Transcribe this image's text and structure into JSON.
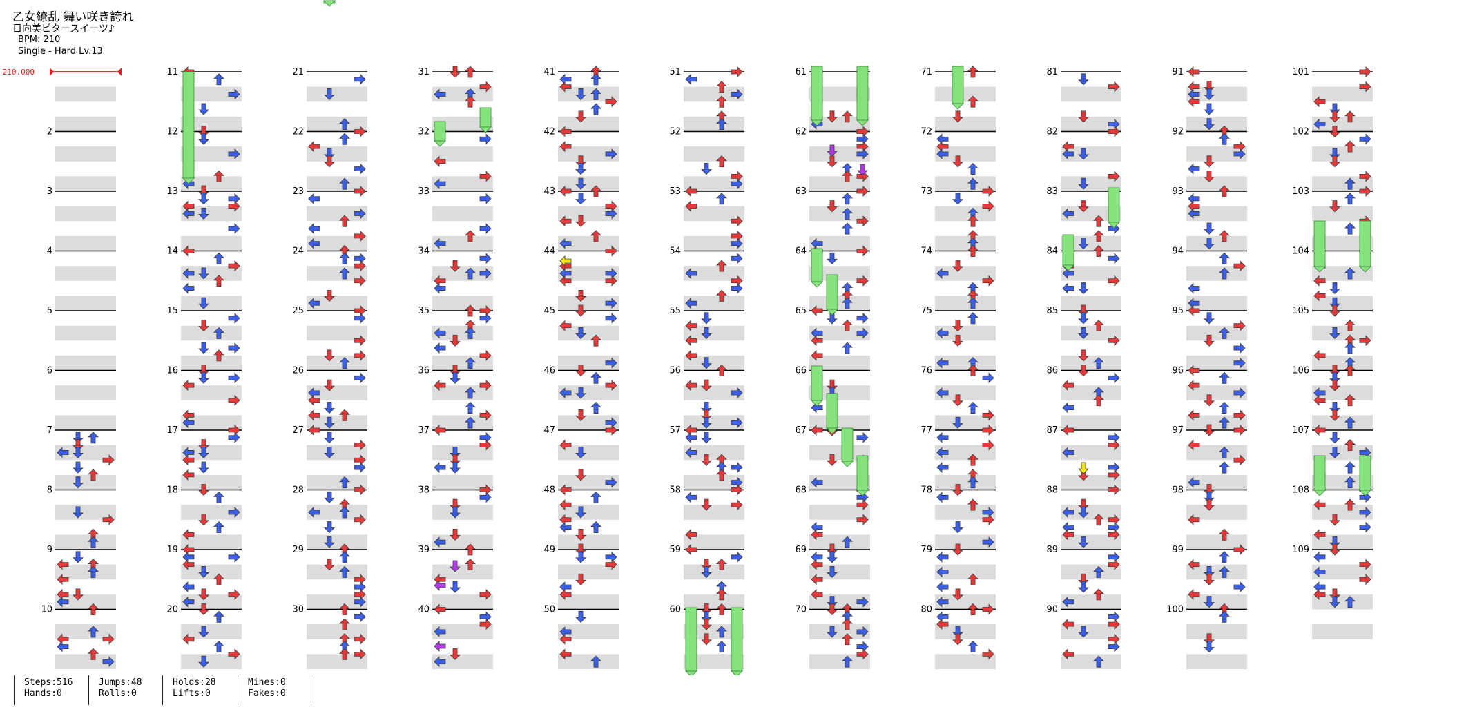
{
  "header": {
    "title": "乙女繚乱 舞い咲き誇れ",
    "artist": "日向美ビタースイーツ♪",
    "bpm_label": "BPM: 210",
    "difficulty": "Single - Hard  Lv.13"
  },
  "bpm_marker": {
    "label": "210.000",
    "color": "#e02020"
  },
  "measure_labels": [
    "11",
    "12",
    "13",
    "14",
    "15",
    "16",
    "17",
    "18",
    "19",
    "20",
    "21",
    "22",
    "23",
    "24",
    "25",
    "26",
    "27",
    "28",
    "29",
    "30",
    "31",
    "32",
    "33",
    "34",
    "35",
    "36",
    "37",
    "38",
    "39",
    "40",
    "41",
    "42",
    "43",
    "44",
    "45",
    "46",
    "47",
    "48",
    "49",
    "50",
    "51",
    "52",
    "53",
    "54",
    "55",
    "56",
    "57",
    "58",
    "59",
    "60",
    "61",
    "62",
    "63",
    "64",
    "65",
    "66",
    "67",
    "68",
    "69",
    "70",
    "71",
    "72",
    "73",
    "74",
    "75",
    "76",
    "77",
    "78",
    "79",
    "80",
    "81",
    "82",
    "83",
    "84",
    "85",
    "86",
    "87",
    "88",
    "89",
    "90",
    "91",
    "92",
    "93",
    "94",
    "95",
    "96",
    "97",
    "98",
    "99",
    "100",
    "101",
    "102",
    "103",
    "104",
    "105",
    "106",
    "107",
    "108",
    "109"
  ],
  "first_column_labels": [
    "2",
    "3",
    "4",
    "5",
    "6",
    "7",
    "8",
    "9",
    "10"
  ],
  "colors": {
    "quarter": "#e63a3a",
    "eighth": "#3b5fe8",
    "sixteenth": "#b23be8",
    "twentyfourth": "#f2e31a",
    "hold": "#86e27c",
    "row_band": "#dcdcdc",
    "measure_line": "#000000"
  },
  "arrow_legend": [
    "left-arrow-icon",
    "down-arrow-icon",
    "up-arrow-icon",
    "right-arrow-icon"
  ],
  "stats": {
    "steps": "Steps:516",
    "jumps": "Jumps:48",
    "holds": "Holds:28",
    "mines": "Mines:0",
    "hands": "Hands:0",
    "rolls": "Rolls:0",
    "lifts": "Lifts:0",
    "fakes": "Fakes:0"
  }
}
